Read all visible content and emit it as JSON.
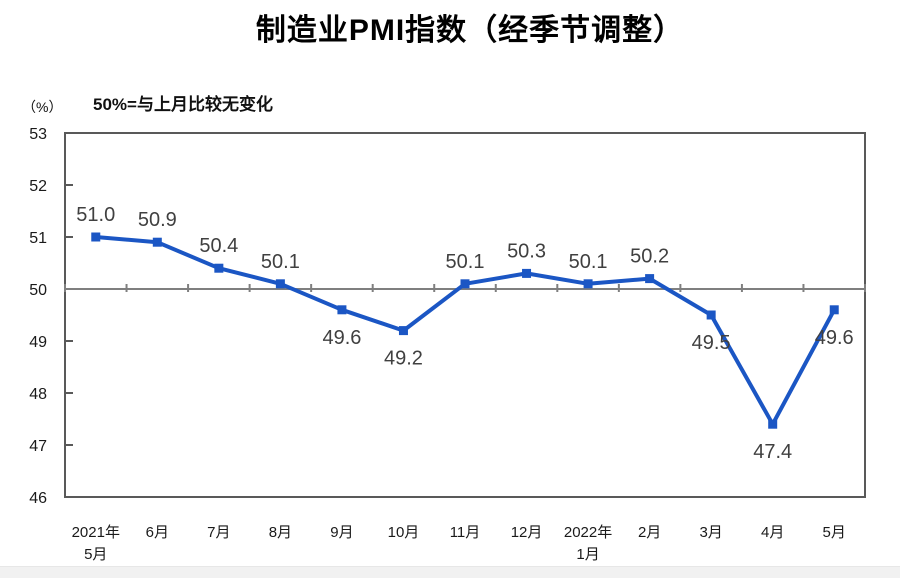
{
  "page": {
    "bottom_strip": ""
  },
  "chart_data": {
    "type": "line",
    "title": "制造业PMI指数（经季节调整）",
    "subtitle_note": "50%=与上月比较无变化",
    "ylabel": "（%）",
    "categories": [
      "2021年\n5月",
      "6月",
      "7月",
      "8月",
      "9月",
      "10月",
      "11月",
      "12月",
      "2022年\n1月",
      "2月",
      "3月",
      "4月",
      "5月"
    ],
    "series": [
      {
        "name": "制造业PMI指数",
        "values": [
          51.0,
          50.9,
          50.4,
          50.1,
          49.6,
          49.2,
          50.1,
          50.3,
          50.1,
          50.2,
          49.5,
          47.4,
          49.6
        ]
      }
    ],
    "data_labels": [
      "51.0",
      "50.9",
      "50.4",
      "50.1",
      "49.6",
      "49.2",
      "50.1",
      "50.3",
      "50.1",
      "50.2",
      "49.5",
      "47.4",
      "49.6"
    ],
    "label_positions": [
      "above",
      "above",
      "above",
      "above",
      "below",
      "below",
      "above",
      "above",
      "above",
      "above",
      "below",
      "below",
      "below"
    ],
    "ylim": [
      46,
      53
    ],
    "yticks": [
      53,
      52,
      51,
      50,
      49,
      48,
      47,
      46
    ],
    "reference_line": 50,
    "grid": false,
    "legend": "none",
    "marker": "square",
    "colors": {
      "line": "#1b56c4",
      "reference_line": "#7f7f7f",
      "axis_border": "#595959",
      "axis_text": "#1a1a1a",
      "data_label": "#404040",
      "title_text": "#000000"
    }
  }
}
